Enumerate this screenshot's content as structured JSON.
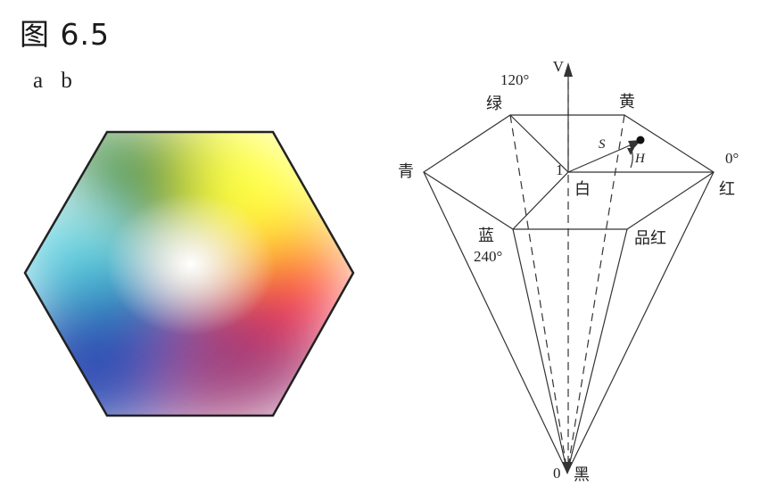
{
  "figure": {
    "title": "图 6.5"
  },
  "panels": {
    "a": "a",
    "b": "b"
  },
  "hsv_diagram": {
    "axis_v": "V",
    "angle_120": "120°",
    "angle_0": "0°",
    "angle_240": "240°",
    "green": "绿",
    "yellow": "黄",
    "cyan": "青",
    "red": "红",
    "white": "白",
    "blue": "蓝",
    "magenta": "品红",
    "black": "黑",
    "value_one": "1",
    "value_zero": "0",
    "s_label": "S",
    "h_label": "H"
  },
  "colors": {
    "red": "#ff2a2a",
    "yellow": "#ffff40",
    "green": "#3c8c3c",
    "cyan": "#40c8d8",
    "blue": "#3050b4",
    "magenta": "#a03c78",
    "center": "#ffffff",
    "outline": "#222222"
  }
}
